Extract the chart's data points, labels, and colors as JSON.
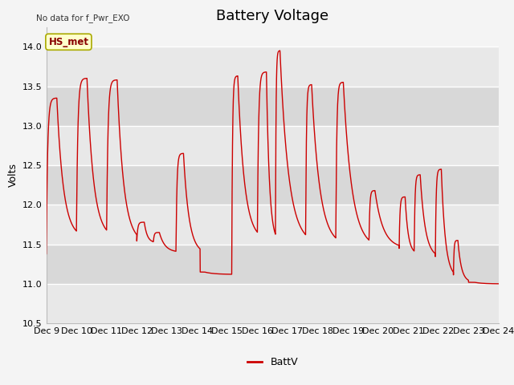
{
  "title": "Battery Voltage",
  "top_left_text": "No data for f_Pwr_EXO",
  "ylabel": "Volts",
  "legend_label": "BattV",
  "hs_met_label": "HS_met",
  "ylim": [
    10.5,
    14.25
  ],
  "yticks": [
    10.5,
    11.0,
    11.5,
    12.0,
    12.5,
    13.0,
    13.5,
    14.0
  ],
  "x_tick_labels": [
    "Dec 9",
    "Dec 10",
    "Dec 11",
    "Dec 12",
    "Dec 13",
    "Dec 14",
    "Dec 15",
    "Dec 16",
    "Dec 17",
    "Dec 18",
    "Dec 19",
    "Dec 20",
    "Dec 21",
    "Dec 22",
    "Dec 23",
    "Dec 24"
  ],
  "line_color": "#cc0000",
  "legend_line_color": "#cc0000",
  "plot_bg_light": "#f0f0f0",
  "plot_bg_dark": "#dcdcdc",
  "grid_color": "#ffffff",
  "title_fontsize": 13,
  "axis_fontsize": 9,
  "tick_fontsize": 8,
  "hs_met_bg": "#ffffcc",
  "hs_met_border": "#aaaa00",
  "hs_met_color": "#880000",
  "cycles": [
    [
      0.0,
      0.35,
      1.0,
      11.38,
      13.35,
      11.58
    ],
    [
      1.0,
      1.35,
      2.0,
      11.58,
      13.6,
      11.58
    ],
    [
      2.0,
      2.35,
      3.0,
      11.58,
      13.58,
      11.52
    ],
    [
      3.0,
      3.25,
      3.55,
      11.52,
      11.78,
      11.52
    ],
    [
      3.55,
      3.75,
      4.3,
      11.52,
      11.65,
      11.4
    ],
    [
      4.3,
      4.55,
      5.1,
      11.38,
      12.65,
      11.38
    ],
    [
      5.1,
      5.25,
      6.15,
      11.15,
      11.15,
      11.12
    ],
    [
      6.15,
      6.35,
      7.0,
      11.12,
      13.63,
      11.55
    ],
    [
      7.0,
      7.3,
      7.6,
      11.55,
      13.68,
      11.52
    ],
    [
      7.6,
      7.75,
      8.6,
      11.52,
      13.95,
      11.5
    ],
    [
      8.6,
      8.8,
      9.6,
      11.5,
      13.52,
      11.48
    ],
    [
      9.6,
      9.85,
      10.7,
      11.48,
      13.55,
      11.45
    ],
    [
      10.7,
      10.9,
      11.7,
      11.45,
      12.18,
      11.45
    ],
    [
      11.7,
      11.9,
      12.2,
      11.38,
      12.1,
      11.38
    ],
    [
      12.2,
      12.4,
      12.9,
      11.35,
      12.38,
      11.33
    ],
    [
      12.9,
      13.1,
      13.5,
      11.2,
      12.45,
      11.08
    ],
    [
      13.5,
      13.65,
      14.0,
      11.05,
      11.55,
      11.02
    ],
    [
      14.0,
      14.2,
      15.0,
      11.02,
      11.02,
      11.0
    ]
  ]
}
